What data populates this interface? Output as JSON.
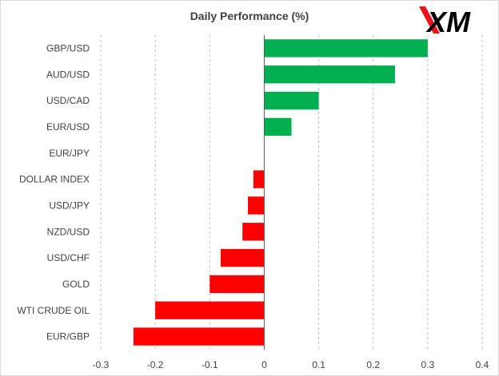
{
  "brand": {
    "logo_text": "XM",
    "logo_color": "#000000",
    "accent": "#e8151b"
  },
  "chart_data": {
    "type": "bar",
    "orientation": "horizontal",
    "title": "Daily Performance (%)",
    "categories": [
      "GBP/USD",
      "AUD/USD",
      "USD/CAD",
      "EUR/USD",
      "EUR/JPY",
      "DOLLAR INDEX",
      "USD/JPY",
      "NZD/USD",
      "USD/CHF",
      "GOLD",
      "WTI CRUDE OIL",
      "EUR/GBP"
    ],
    "values": [
      0.3,
      0.24,
      0.1,
      0.05,
      0.0,
      -0.02,
      -0.03,
      -0.04,
      -0.08,
      -0.1,
      -0.2,
      -0.24
    ],
    "xlim": [
      -0.3,
      0.4
    ],
    "xticks": [
      -0.3,
      -0.2,
      -0.1,
      0,
      0.1,
      0.2,
      0.3,
      0.4
    ],
    "xtick_labels": [
      "-0.3",
      "-0.2",
      "-0.1",
      "0",
      "0.1",
      "0.2",
      "0.3",
      "0.4"
    ],
    "grid": "vertical dashed",
    "colors": {
      "positive": "#00b050",
      "negative": "#ff0000",
      "grid": "#bfbfbf",
      "axis": "#595959",
      "text": "#404040"
    }
  }
}
